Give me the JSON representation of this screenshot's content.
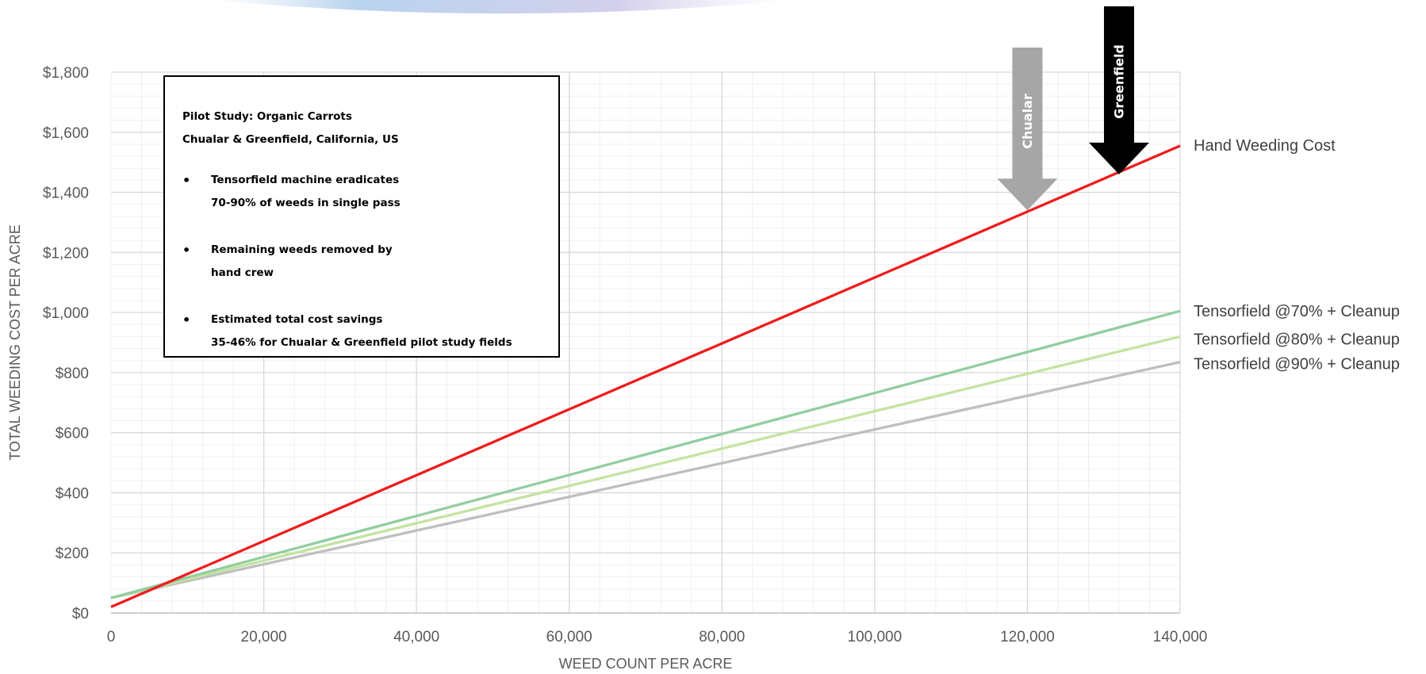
{
  "chart_data": {
    "type": "line",
    "title": "",
    "xlabel": "WEED COUNT PER ACRE",
    "ylabel": "TOTAL WEEDING COST PER ACRE",
    "xlim": [
      0,
      140000
    ],
    "ylim": [
      0,
      1800
    ],
    "x_ticks": [
      "0",
      "20,000",
      "40,000",
      "60,000",
      "80,000",
      "100,000",
      "120,000",
      "140,000"
    ],
    "y_ticks": [
      "$0",
      "$200",
      "$400",
      "$600",
      "$800",
      "$1,000",
      "$1,200",
      "$1,400",
      "$1,600",
      "$1,800"
    ],
    "grid": true,
    "legend_position": "labels at right end of lines",
    "series": [
      {
        "name": "Hand Weeding Cost",
        "color": "#ee1c1c",
        "x": [
          0,
          140000
        ],
        "y": [
          20,
          1555
        ]
      },
      {
        "name": "Tensorfield @70% + Cleanup",
        "color": "#92ce9f",
        "x": [
          0,
          140000
        ],
        "y": [
          50,
          1005
        ]
      },
      {
        "name": "Tensorfield @80% + Cleanup",
        "color": "#c4e3a1",
        "x": [
          0,
          140000
        ],
        "y": [
          50,
          920
        ]
      },
      {
        "name": "Tensorfield @90% + Cleanup",
        "color": "#bfbfbf",
        "x": [
          0,
          140000
        ],
        "y": [
          50,
          835
        ]
      }
    ],
    "annotations": [
      {
        "label": "Chualar",
        "x": 120000,
        "y": 1340,
        "color": "#a6a6a6"
      },
      {
        "label": "Greenfield",
        "x": 132000,
        "y": 1460,
        "color": "#000000"
      }
    ]
  },
  "note": {
    "title_line1": "Pilot Study: Organic Carrots",
    "title_line2": "Chualar & Greenfield, California, US",
    "bullet_symbol": "•",
    "items": [
      {
        "line1": "Tensorfield machine eradicates",
        "line2": "70-90% of weeds in single pass"
      },
      {
        "line1": "Remaining weeds removed by",
        "line2": "hand crew"
      },
      {
        "line1": "Estimated total cost savings",
        "line2": "35-46% for Chualar & Greenfield pilot study fields"
      }
    ]
  }
}
